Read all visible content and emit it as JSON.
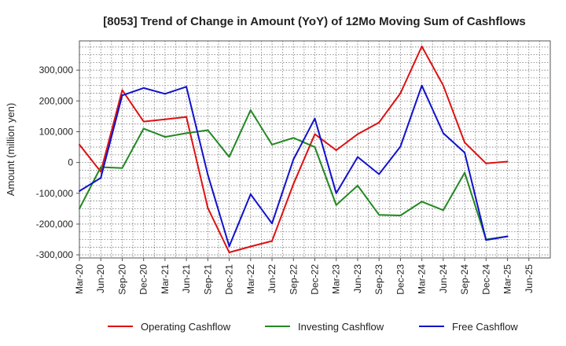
{
  "chart_data": {
    "type": "line",
    "title": "[8053]  Trend of Change in Amount (YoY) of 12Mo Moving Sum of Cashflows",
    "xlabel": "",
    "ylabel": "Amount (million yen)",
    "ylim": [
      -310000,
      395000
    ],
    "yticks": [
      -300000,
      -200000,
      -100000,
      0,
      100000,
      200000,
      300000
    ],
    "ytick_labels": [
      "-300,000",
      "-200,000",
      "-100,000",
      "0",
      "100,000",
      "200,000",
      "300,000"
    ],
    "categories": [
      "Mar-20",
      "Jun-20",
      "Sep-20",
      "Dec-20",
      "Mar-21",
      "Jun-21",
      "Sep-21",
      "Dec-21",
      "Mar-22",
      "Jun-22",
      "Sep-22",
      "Dec-22",
      "Mar-23",
      "Jun-23",
      "Sep-23",
      "Dec-23",
      "Mar-24",
      "Jun-24",
      "Sep-24",
      "Dec-24",
      "Mar-25",
      "Jun-25"
    ],
    "grid": true,
    "legend_position": "bottom",
    "series": [
      {
        "name": "Operating Cashflow",
        "color": "#dd1111",
        "values": [
          58000,
          -30000,
          235000,
          133000,
          140000,
          148000,
          -148000,
          -292000,
          -273000,
          -255000,
          -70000,
          92000,
          40000,
          92000,
          130000,
          225000,
          377000,
          250000,
          65000,
          -3000,
          3000,
          null
        ]
      },
      {
        "name": "Investing Cashflow",
        "color": "#228822",
        "values": [
          -150000,
          -15000,
          -18000,
          110000,
          83000,
          95000,
          105000,
          18000,
          170000,
          58000,
          80000,
          50000,
          -138000,
          -75000,
          -170000,
          -172000,
          -127000,
          -155000,
          -33000,
          -250000,
          -240000,
          null
        ]
      },
      {
        "name": "Free Cashflow",
        "color": "#1111cc",
        "values": [
          -93000,
          -50000,
          218000,
          242000,
          223000,
          246000,
          -40000,
          -272000,
          -103000,
          -198000,
          10000,
          143000,
          -100000,
          18000,
          -38000,
          52000,
          250000,
          95000,
          32000,
          -252000,
          -240000,
          null
        ]
      }
    ]
  }
}
